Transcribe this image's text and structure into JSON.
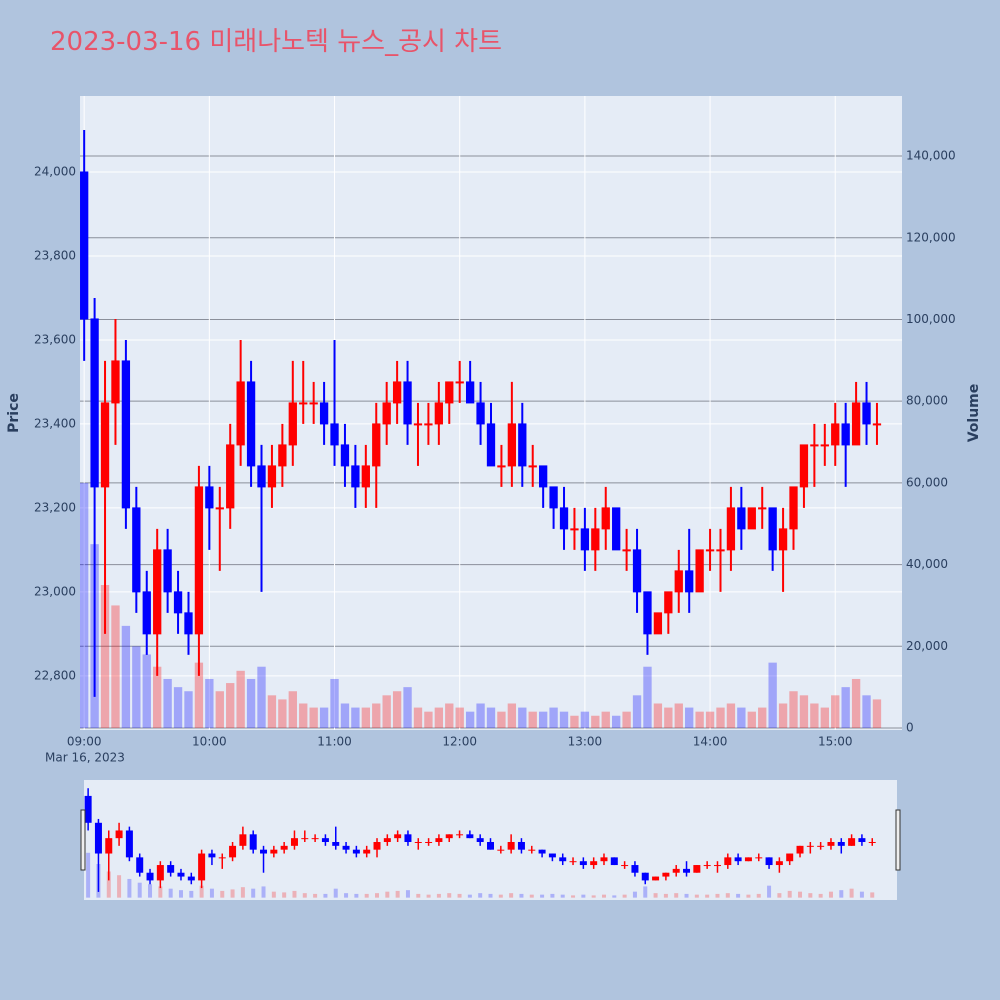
{
  "chart_data": {
    "type": "candlestick",
    "title": "2023-03-16 미래나노텍 뉴스_공시 차트",
    "y_title": "Price",
    "y2_title": "Volume",
    "x_date_label": "Mar 16, 2023",
    "x": [
      "09:00",
      "09:05",
      "09:10",
      "09:15",
      "09:20",
      "09:25",
      "09:30",
      "09:35",
      "09:40",
      "09:45",
      "09:50",
      "09:55",
      "10:00",
      "10:05",
      "10:10",
      "10:15",
      "10:20",
      "10:25",
      "10:30",
      "10:35",
      "10:40",
      "10:45",
      "10:50",
      "10:55",
      "11:00",
      "11:05",
      "11:10",
      "11:15",
      "11:20",
      "11:25",
      "11:30",
      "11:35",
      "11:40",
      "11:45",
      "11:50",
      "11:55",
      "12:00",
      "12:05",
      "12:10",
      "12:15",
      "12:20",
      "12:25",
      "12:30",
      "12:35",
      "12:40",
      "12:45",
      "12:50",
      "12:55",
      "13:00",
      "13:05",
      "13:10",
      "13:15",
      "13:20",
      "13:25",
      "13:30",
      "13:35",
      "13:40",
      "13:45",
      "13:50",
      "13:55",
      "14:00",
      "14:05",
      "14:10",
      "14:15",
      "14:20",
      "14:25",
      "14:30",
      "14:35",
      "14:40",
      "14:45",
      "14:50",
      "14:55",
      "15:00",
      "15:05",
      "15:10",
      "15:15",
      "15:20"
    ],
    "open": [
      24000,
      23650,
      23250,
      23450,
      23550,
      23200,
      23000,
      22900,
      23100,
      23000,
      22950,
      22900,
      23250,
      23200,
      23200,
      23350,
      23500,
      23300,
      23250,
      23300,
      23350,
      23450,
      23450,
      23450,
      23400,
      23350,
      23300,
      23250,
      23300,
      23400,
      23450,
      23500,
      23400,
      23400,
      23400,
      23450,
      23500,
      23500,
      23450,
      23400,
      23300,
      23300,
      23400,
      23300,
      23300,
      23250,
      23200,
      23150,
      23150,
      23100,
      23150,
      23200,
      23100,
      23100,
      23000,
      22900,
      22950,
      23000,
      23050,
      23000,
      23100,
      23100,
      23100,
      23200,
      23150,
      23200,
      23200,
      23100,
      23150,
      23250,
      23350,
      23350,
      23350,
      23400,
      23350,
      23450,
      23400
    ],
    "high": [
      24100,
      23700,
      23550,
      23650,
      23600,
      23250,
      23050,
      23150,
      23150,
      23050,
      23000,
      23300,
      23300,
      23250,
      23400,
      23600,
      23550,
      23350,
      23350,
      23400,
      23550,
      23550,
      23500,
      23500,
      23600,
      23400,
      23350,
      23350,
      23450,
      23500,
      23550,
      23550,
      23450,
      23450,
      23500,
      23500,
      23550,
      23550,
      23500,
      23450,
      23350,
      23500,
      23450,
      23350,
      23300,
      23250,
      23250,
      23200,
      23200,
      23200,
      23250,
      23200,
      23150,
      23150,
      23000,
      22950,
      23000,
      23100,
      23150,
      23100,
      23150,
      23150,
      23250,
      23250,
      23200,
      23250,
      23200,
      23200,
      23250,
      23350,
      23400,
      23400,
      23450,
      23450,
      23500,
      23500,
      23450
    ],
    "low": [
      23550,
      22750,
      22900,
      23350,
      23150,
      22950,
      22850,
      22800,
      22950,
      22900,
      22850,
      22800,
      23100,
      23050,
      23150,
      23300,
      23250,
      23000,
      23200,
      23250,
      23300,
      23400,
      23400,
      23350,
      23300,
      23250,
      23200,
      23200,
      23200,
      23350,
      23400,
      23350,
      23300,
      23350,
      23350,
      23400,
      23450,
      23450,
      23350,
      23300,
      23250,
      23250,
      23250,
      23250,
      23200,
      23150,
      23100,
      23100,
      23050,
      23050,
      23100,
      23100,
      23050,
      22950,
      22850,
      22900,
      22900,
      22950,
      22950,
      23000,
      23050,
      23000,
      23050,
      23100,
      23150,
      23150,
      23050,
      23000,
      23100,
      23200,
      23250,
      23300,
      23300,
      23250,
      23350,
      23350,
      23350
    ],
    "close": [
      23650,
      23250,
      23450,
      23550,
      23200,
      23000,
      22900,
      23100,
      23000,
      22950,
      22900,
      23250,
      23200,
      23200,
      23350,
      23500,
      23300,
      23250,
      23300,
      23350,
      23450,
      23450,
      23450,
      23400,
      23350,
      23300,
      23250,
      23300,
      23400,
      23450,
      23500,
      23400,
      23400,
      23400,
      23450,
      23500,
      23500,
      23450,
      23400,
      23300,
      23300,
      23400,
      23300,
      23300,
      23250,
      23200,
      23150,
      23150,
      23100,
      23150,
      23200,
      23100,
      23100,
      23000,
      22900,
      22950,
      23000,
      23050,
      23000,
      23100,
      23100,
      23100,
      23200,
      23150,
      23200,
      23200,
      23100,
      23150,
      23250,
      23350,
      23350,
      23350,
      23400,
      23350,
      23450,
      23400,
      23400
    ],
    "volume": [
      60000,
      45000,
      35000,
      30000,
      25000,
      20000,
      18000,
      15000,
      12000,
      10000,
      9000,
      16000,
      12000,
      9000,
      11000,
      14000,
      12000,
      15000,
      8000,
      7000,
      9000,
      6000,
      5000,
      5000,
      12000,
      6000,
      5000,
      5000,
      6000,
      8000,
      9000,
      10000,
      5000,
      4000,
      5000,
      6000,
      5000,
      4000,
      6000,
      5000,
      4000,
      6000,
      5000,
      4000,
      4000,
      5000,
      4000,
      3000,
      4000,
      3000,
      4000,
      3000,
      4000,
      8000,
      15000,
      6000,
      5000,
      6000,
      5000,
      4000,
      4000,
      5000,
      6000,
      5000,
      4000,
      5000,
      16000,
      6000,
      9000,
      8000,
      6000,
      5000,
      8000,
      10000,
      12000,
      8000,
      7000
    ],
    "increasing_color": "#ff0000",
    "decreasing_color": "#0000ff",
    "xlim": [
      "08:58",
      "15:32"
    ],
    "xticks": [
      "09:00",
      "10:00",
      "11:00",
      "12:00",
      "13:00",
      "14:00",
      "15:00"
    ],
    "ylim": [
      22671,
      24181
    ],
    "yticks": [
      {
        "value": 22800,
        "label": "22,800"
      },
      {
        "value": 23000,
        "label": "23,000"
      },
      {
        "value": 23200,
        "label": "23,200"
      },
      {
        "value": 23400,
        "label": "23,400"
      },
      {
        "value": 23600,
        "label": "23,600"
      },
      {
        "value": 23800,
        "label": "23,800"
      },
      {
        "value": 24000,
        "label": "24,000"
      }
    ],
    "y2lim": [
      -490,
      154700
    ],
    "y2ticks": [
      0,
      {
        "value": 20000,
        "label": "20,000"
      },
      {
        "value": 40000,
        "label": "40,000"
      },
      {
        "value": 60000,
        "label": "60,000"
      },
      {
        "value": 80000,
        "label": "80,000"
      },
      {
        "value": 100000,
        "label": "100,000"
      },
      {
        "value": 120000,
        "label": "120,000"
      },
      {
        "value": 140000,
        "label": "140,000"
      }
    ],
    "grid": true,
    "rangeslider": true
  }
}
